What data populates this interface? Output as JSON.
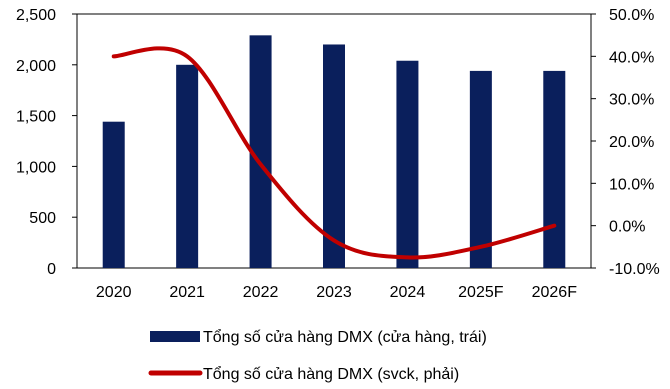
{
  "chart_data": {
    "type": "bar",
    "categories": [
      "2020",
      "2021",
      "2022",
      "2023",
      "2024",
      "2025F",
      "2026F"
    ],
    "series": [
      {
        "name": "Tổng số cửa hàng DMX (cửa hàng, trái)",
        "kind": "bar",
        "axis": "left",
        "color": "#0a1f5c",
        "values": [
          1440,
          2000,
          2290,
          2200,
          2040,
          1940,
          1940
        ]
      },
      {
        "name": "Tổng số cửa hàng DMX (svck, phải)",
        "kind": "line",
        "axis": "right",
        "color": "#c00000",
        "values": [
          40.0,
          40.0,
          14.5,
          -3.5,
          -7.5,
          -5.0,
          0.0
        ]
      }
    ],
    "y_left": {
      "lim": [
        0,
        2500
      ],
      "ticks": [
        0,
        500,
        1000,
        1500,
        2000,
        2500
      ],
      "tick_labels": [
        "0",
        "500",
        "1,000",
        "1,500",
        "2,000",
        "2,500"
      ]
    },
    "y_right": {
      "lim": [
        -10,
        50
      ],
      "ticks": [
        -10,
        0,
        10,
        20,
        30,
        40,
        50
      ],
      "tick_labels": [
        "-10.0%",
        "0.0%",
        "10.0%",
        "20.0%",
        "30.0%",
        "40.0%",
        "50.0%"
      ]
    },
    "legend_position": "bottom",
    "grid": false
  }
}
